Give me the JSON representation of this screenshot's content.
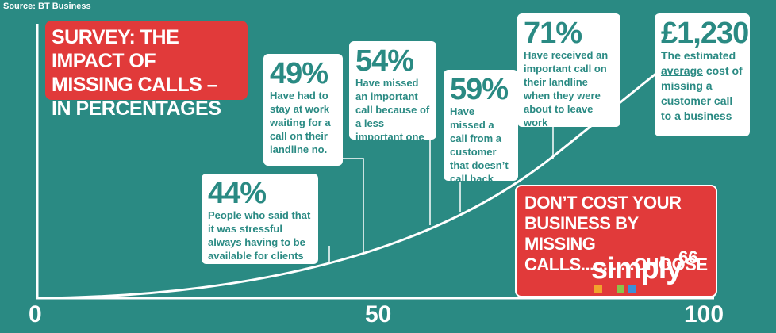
{
  "source": "Source: BT Business",
  "title": "SURVEY: THE IMPACT OF MISSING CALLS – IN PERCENTAGES",
  "axis": {
    "ticks": [
      "0",
      "50",
      "100"
    ]
  },
  "cards": [
    {
      "value": 44,
      "pct": "44%",
      "desc": "People who said that it was stressful always having to be available for clients"
    },
    {
      "value": 49,
      "pct": "49%",
      "desc": "Have had to stay at work waiting for a call on their landline no."
    },
    {
      "value": 54,
      "pct": "54%",
      "desc": "Have missed an important call because of a less important one"
    },
    {
      "value": 59,
      "pct": "59%",
      "desc": "Have missed a call from a customer that doesn’t call back"
    },
    {
      "value": 71,
      "pct": "71%",
      "desc": "Have received an important call on their landline when they were about to leave work"
    }
  ],
  "cost": {
    "amount": "£1,230",
    "line1": "The estimated",
    "emphasis": "average",
    "line2": "cost of missing a customer call to a business"
  },
  "cta": {
    "text": "DON’T COST YOUR BUSINESS BY MISSING CALLS............CHOOSE"
  },
  "logo": {
    "word": "simply",
    "number": "66",
    "colors": [
      "#f2a22c",
      "#e13a3a",
      "#8bc34a",
      "#3b8fd8"
    ]
  },
  "colors": {
    "background": "#2a8a83",
    "accent_red": "#e13a3a",
    "text_teal": "#2a8a83"
  }
}
